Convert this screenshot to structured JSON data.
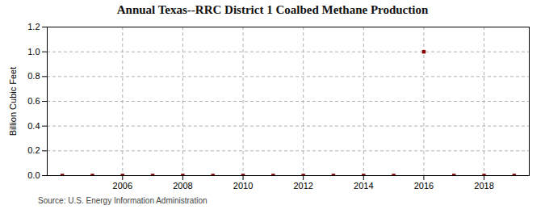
{
  "chart_data": {
    "type": "scatter",
    "title": "Annual Texas--RRC District 1 Coalbed Methane Production",
    "ylabel": "Billion Cubic Feet",
    "source": "Source: U.S. Energy Information Administration",
    "x": [
      2004,
      2005,
      2006,
      2007,
      2008,
      2009,
      2010,
      2011,
      2012,
      2013,
      2014,
      2015,
      2016,
      2017,
      2018,
      2019
    ],
    "values": [
      0.0,
      0.0,
      0.0,
      0.0,
      0.0,
      0.0,
      0.0,
      0.0,
      0.0,
      0.0,
      0.0,
      0.0,
      1.0,
      0.0,
      0.0,
      0.0
    ],
    "color": "#8b0000",
    "marker": "square",
    "xlim": [
      2003.5,
      2019.5
    ],
    "xticks": [
      2006,
      2008,
      2010,
      2012,
      2014,
      2016,
      2018
    ],
    "ylim": [
      0.0,
      1.2
    ],
    "yticks": [
      {
        "value": 0.0,
        "label": "0.0"
      },
      0.2,
      0.4,
      0.6,
      0.8,
      {
        "value": 1.0,
        "label": "1.0"
      },
      1.2
    ],
    "grid": true
  }
}
